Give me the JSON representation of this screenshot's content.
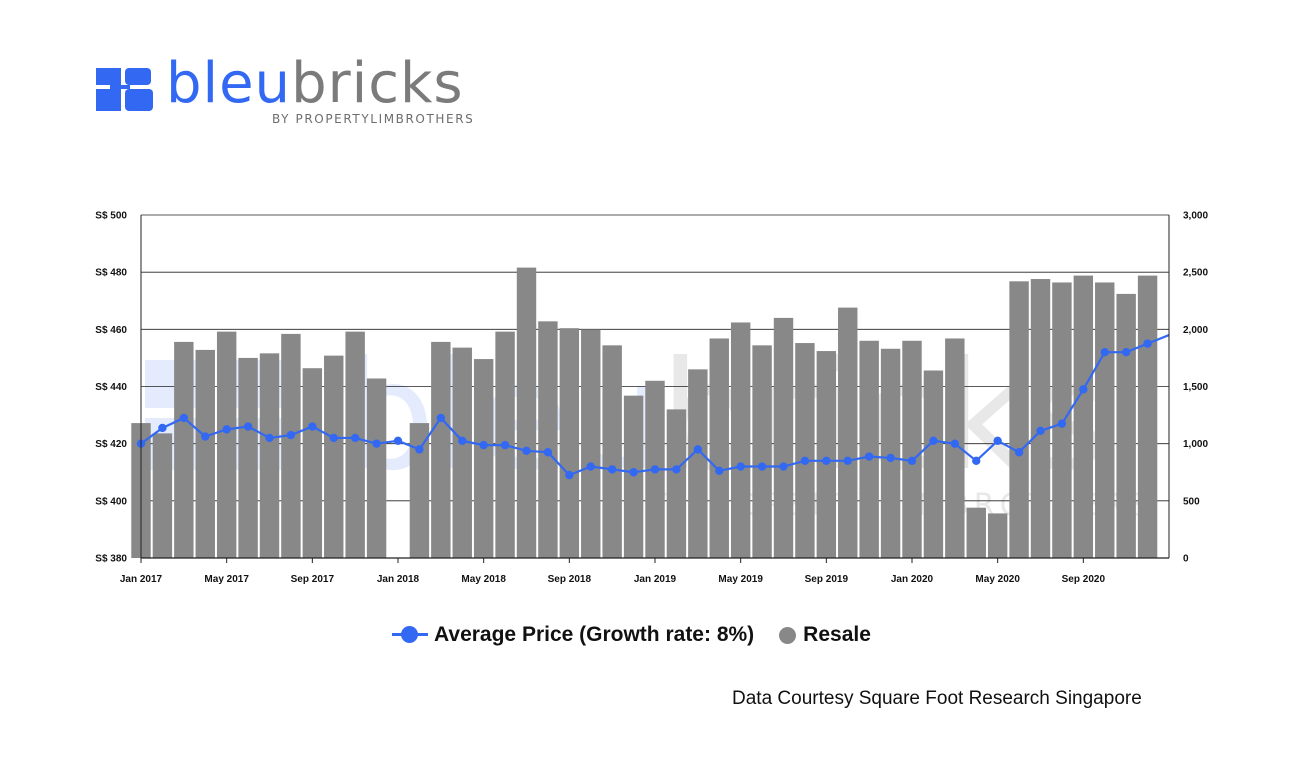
{
  "brand": {
    "name_part1": "bleu",
    "name_part2": "bricks",
    "tagline": "BY PROPERTYLIMBROTHERS",
    "colors": {
      "blue": "#3369f2",
      "grey": "#7b7b7b"
    }
  },
  "watermark": {
    "name_part1": "bleu",
    "name_part2": "bricks",
    "tagline": "BY PROPERTYLIMBROTHERS"
  },
  "credit": "Data Courtesy Square Foot Research Singapore",
  "chart_data": {
    "type": "bar+line",
    "title": "",
    "x": [
      "2017-01",
      "2017-02",
      "2017-03",
      "2017-04",
      "2017-05",
      "2017-06",
      "2017-07",
      "2017-08",
      "2017-09",
      "2017-10",
      "2017-11",
      "2017-12",
      "2018-01",
      "2018-02",
      "2018-03",
      "2018-04",
      "2018-05",
      "2018-06",
      "2018-07",
      "2018-08",
      "2018-09",
      "2018-10",
      "2018-11",
      "2018-12",
      "2019-01",
      "2019-02",
      "2019-03",
      "2019-04",
      "2019-05",
      "2019-06",
      "2019-07",
      "2019-08",
      "2019-09",
      "2019-10",
      "2019-11",
      "2019-12",
      "2020-01",
      "2020-02",
      "2020-03",
      "2020-04",
      "2020-05",
      "2020-06",
      "2020-07",
      "2020-08",
      "2020-09",
      "2020-10",
      "2020-11",
      "2020-12",
      "2021-01"
    ],
    "x_tick_labels": [
      "Jan 2017",
      "May 2017",
      "Sep 2017",
      "Jan 2018",
      "May 2018",
      "Sep 2018",
      "Jan 2019",
      "May 2019",
      "Sep 2019",
      "Jan 2020",
      "May 2020",
      "Sep 2020"
    ],
    "x_tick_months": [
      "2017-01",
      "2017-05",
      "2017-09",
      "2018-01",
      "2018-05",
      "2018-09",
      "2019-01",
      "2019-05",
      "2019-09",
      "2020-01",
      "2020-05",
      "2020-09"
    ],
    "left_axis": {
      "ticks": [
        "S$ 380",
        "S$ 400",
        "S$ 420",
        "S$ 440",
        "S$ 460",
        "S$ 480",
        "S$ 500"
      ],
      "ylim": [
        380,
        500
      ]
    },
    "right_axis": {
      "ticks": [
        "0",
        "500",
        "1,000",
        "1,500",
        "2,000",
        "2,500",
        "3,000"
      ],
      "ylim": [
        0,
        3000
      ]
    },
    "grid": true,
    "legend_position": "bottom",
    "series": [
      {
        "name": "Resale",
        "type": "bar",
        "axis": "right",
        "color": "#888888",
        "values": [
          1180,
          1090,
          1890,
          1820,
          1980,
          1750,
          1790,
          1960,
          1660,
          1770,
          1980,
          1570,
          null,
          1180,
          1890,
          1840,
          1740,
          1980,
          2540,
          2070,
          2010,
          2000,
          1860,
          1420,
          1550,
          1300,
          1650,
          1920,
          2060,
          1860,
          2100,
          1880,
          1810,
          2190,
          1900,
          1830,
          1900,
          1640,
          1920,
          440,
          390,
          2420,
          2440,
          2410,
          2470,
          2410,
          2310,
          2470,
          null
        ]
      },
      {
        "name": "Average Price (Growth rate: 8%)",
        "type": "line",
        "axis": "left",
        "color": "#3369f2",
        "values": [
          420,
          425.5,
          429,
          422.5,
          425,
          426,
          422,
          423,
          426,
          422,
          422,
          420,
          421,
          418,
          429,
          421,
          419.5,
          419.5,
          417.5,
          417,
          409,
          412,
          411,
          410,
          411,
          411,
          418,
          410.5,
          412,
          412,
          412,
          414,
          414,
          414,
          415.5,
          415,
          414,
          421,
          420,
          414,
          421,
          417,
          424.5,
          427,
          439,
          452,
          452,
          455,
          458
        ]
      }
    ]
  }
}
